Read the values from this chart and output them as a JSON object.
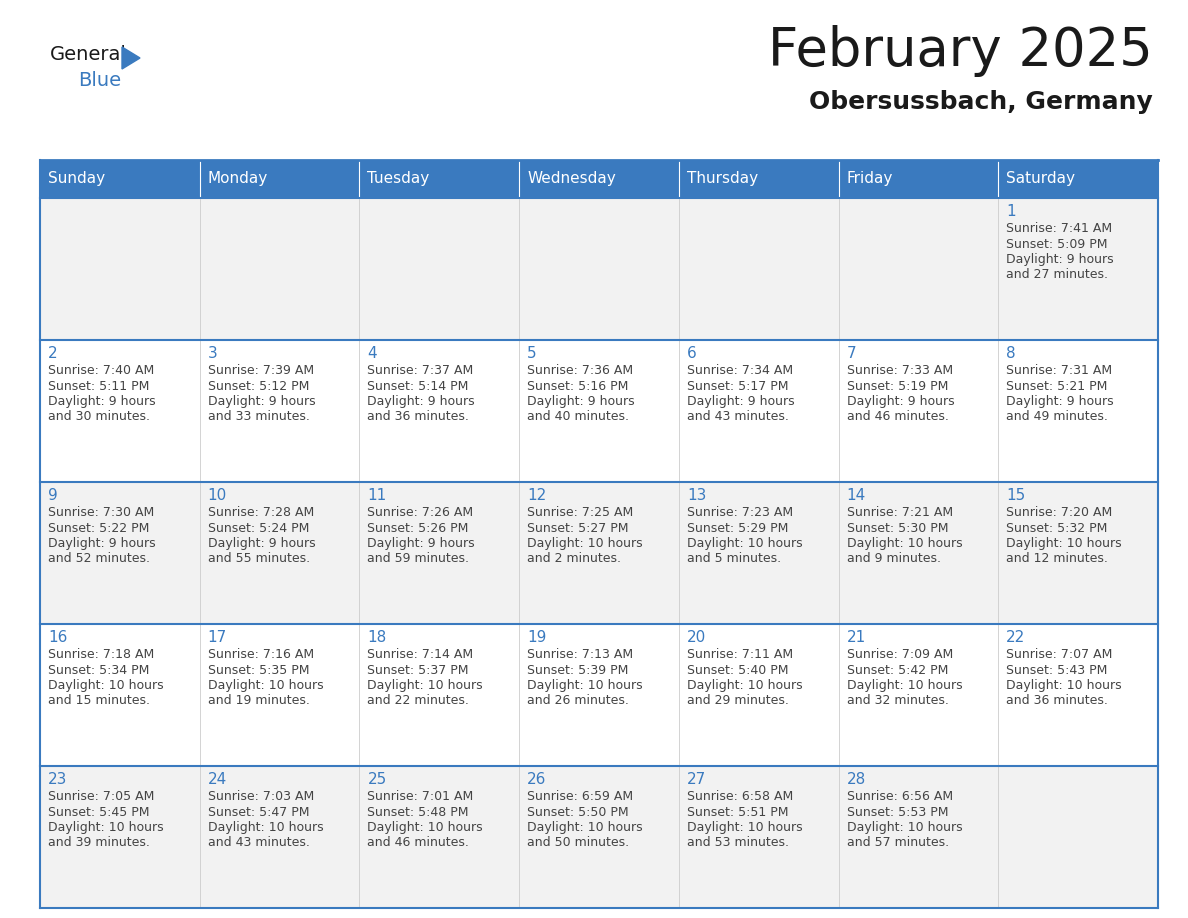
{
  "title": "February 2025",
  "subtitle": "Obersussbach, Germany",
  "header_bg": "#3a7abf",
  "header_text": "#ffffff",
  "row0_bg": "#f2f2f2",
  "row1_bg": "#ffffff",
  "row2_bg": "#f2f2f2",
  "row3_bg": "#ffffff",
  "row4_bg": "#f2f2f2",
  "day_number_color": "#3a7abf",
  "cell_text_color": "#444444",
  "border_color": "#3a7abf",
  "days_of_week": [
    "Sunday",
    "Monday",
    "Tuesday",
    "Wednesday",
    "Thursday",
    "Friday",
    "Saturday"
  ],
  "calendar_data": [
    [
      null,
      null,
      null,
      null,
      null,
      null,
      {
        "day": 1,
        "sunrise": "7:41 AM",
        "sunset": "5:09 PM",
        "daylight_h": "9 hours",
        "daylight_m": "and 27 minutes."
      }
    ],
    [
      {
        "day": 2,
        "sunrise": "7:40 AM",
        "sunset": "5:11 PM",
        "daylight_h": "9 hours",
        "daylight_m": "and 30 minutes."
      },
      {
        "day": 3,
        "sunrise": "7:39 AM",
        "sunset": "5:12 PM",
        "daylight_h": "9 hours",
        "daylight_m": "and 33 minutes."
      },
      {
        "day": 4,
        "sunrise": "7:37 AM",
        "sunset": "5:14 PM",
        "daylight_h": "9 hours",
        "daylight_m": "and 36 minutes."
      },
      {
        "day": 5,
        "sunrise": "7:36 AM",
        "sunset": "5:16 PM",
        "daylight_h": "9 hours",
        "daylight_m": "and 40 minutes."
      },
      {
        "day": 6,
        "sunrise": "7:34 AM",
        "sunset": "5:17 PM",
        "daylight_h": "9 hours",
        "daylight_m": "and 43 minutes."
      },
      {
        "day": 7,
        "sunrise": "7:33 AM",
        "sunset": "5:19 PM",
        "daylight_h": "9 hours",
        "daylight_m": "and 46 minutes."
      },
      {
        "day": 8,
        "sunrise": "7:31 AM",
        "sunset": "5:21 PM",
        "daylight_h": "9 hours",
        "daylight_m": "and 49 minutes."
      }
    ],
    [
      {
        "day": 9,
        "sunrise": "7:30 AM",
        "sunset": "5:22 PM",
        "daylight_h": "9 hours",
        "daylight_m": "and 52 minutes."
      },
      {
        "day": 10,
        "sunrise": "7:28 AM",
        "sunset": "5:24 PM",
        "daylight_h": "9 hours",
        "daylight_m": "and 55 minutes."
      },
      {
        "day": 11,
        "sunrise": "7:26 AM",
        "sunset": "5:26 PM",
        "daylight_h": "9 hours",
        "daylight_m": "and 59 minutes."
      },
      {
        "day": 12,
        "sunrise": "7:25 AM",
        "sunset": "5:27 PM",
        "daylight_h": "10 hours",
        "daylight_m": "and 2 minutes."
      },
      {
        "day": 13,
        "sunrise": "7:23 AM",
        "sunset": "5:29 PM",
        "daylight_h": "10 hours",
        "daylight_m": "and 5 minutes."
      },
      {
        "day": 14,
        "sunrise": "7:21 AM",
        "sunset": "5:30 PM",
        "daylight_h": "10 hours",
        "daylight_m": "and 9 minutes."
      },
      {
        "day": 15,
        "sunrise": "7:20 AM",
        "sunset": "5:32 PM",
        "daylight_h": "10 hours",
        "daylight_m": "and 12 minutes."
      }
    ],
    [
      {
        "day": 16,
        "sunrise": "7:18 AM",
        "sunset": "5:34 PM",
        "daylight_h": "10 hours",
        "daylight_m": "and 15 minutes."
      },
      {
        "day": 17,
        "sunrise": "7:16 AM",
        "sunset": "5:35 PM",
        "daylight_h": "10 hours",
        "daylight_m": "and 19 minutes."
      },
      {
        "day": 18,
        "sunrise": "7:14 AM",
        "sunset": "5:37 PM",
        "daylight_h": "10 hours",
        "daylight_m": "and 22 minutes."
      },
      {
        "day": 19,
        "sunrise": "7:13 AM",
        "sunset": "5:39 PM",
        "daylight_h": "10 hours",
        "daylight_m": "and 26 minutes."
      },
      {
        "day": 20,
        "sunrise": "7:11 AM",
        "sunset": "5:40 PM",
        "daylight_h": "10 hours",
        "daylight_m": "and 29 minutes."
      },
      {
        "day": 21,
        "sunrise": "7:09 AM",
        "sunset": "5:42 PM",
        "daylight_h": "10 hours",
        "daylight_m": "and 32 minutes."
      },
      {
        "day": 22,
        "sunrise": "7:07 AM",
        "sunset": "5:43 PM",
        "daylight_h": "10 hours",
        "daylight_m": "and 36 minutes."
      }
    ],
    [
      {
        "day": 23,
        "sunrise": "7:05 AM",
        "sunset": "5:45 PM",
        "daylight_h": "10 hours",
        "daylight_m": "and 39 minutes."
      },
      {
        "day": 24,
        "sunrise": "7:03 AM",
        "sunset": "5:47 PM",
        "daylight_h": "10 hours",
        "daylight_m": "and 43 minutes."
      },
      {
        "day": 25,
        "sunrise": "7:01 AM",
        "sunset": "5:48 PM",
        "daylight_h": "10 hours",
        "daylight_m": "and 46 minutes."
      },
      {
        "day": 26,
        "sunrise": "6:59 AM",
        "sunset": "5:50 PM",
        "daylight_h": "10 hours",
        "daylight_m": "and 50 minutes."
      },
      {
        "day": 27,
        "sunrise": "6:58 AM",
        "sunset": "5:51 PM",
        "daylight_h": "10 hours",
        "daylight_m": "and 53 minutes."
      },
      {
        "day": 28,
        "sunrise": "6:56 AM",
        "sunset": "5:53 PM",
        "daylight_h": "10 hours",
        "daylight_m": "and 57 minutes."
      },
      null
    ]
  ]
}
